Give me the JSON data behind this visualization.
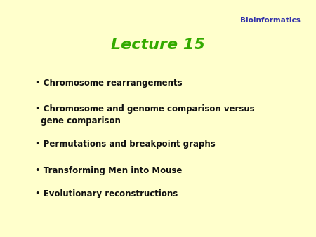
{
  "background_color": "#ffffcc",
  "title": "Lecture 15",
  "title_color": "#33aa00",
  "title_fontsize": 16,
  "title_fontstyle": "italic",
  "title_fontweight": "bold",
  "bioinformatics_label": "Bioinformatics",
  "bioinformatics_color": "#3333aa",
  "bioinformatics_fontsize": 7.5,
  "bioinformatics_fontweight": "bold",
  "bullet_items": [
    "• Chromosome rearrangements",
    "• Chromosome and genome comparison versus\n  gene comparison",
    "• Permutations and breakpoint graphs",
    "• Transforming Men into Mouse",
    "• Evolutionary reconstructions"
  ],
  "bullet_color": "#111111",
  "bullet_fontsize": 8.5,
  "bullet_fontweight": "bold"
}
